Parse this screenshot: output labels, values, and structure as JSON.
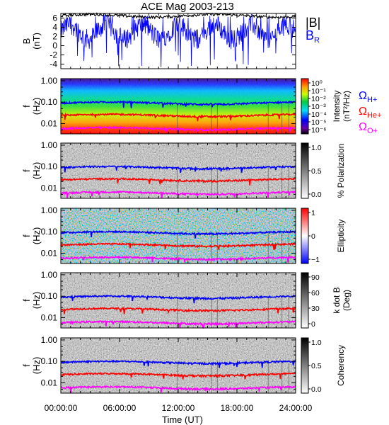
{
  "chart_data": {
    "title": "ACE Mag 2003-213",
    "xlabel": "Time (UT)",
    "x_tick_labels": [
      "00:00:00",
      "06:00:00",
      "12:00:00",
      "18:00:00",
      "24:00:00"
    ],
    "x_range_hours": [
      0,
      24
    ],
    "panels": [
      {
        "type": "line",
        "ylabel_top": "B",
        "ylabel_bottom": "(nT)",
        "y_ticks": [
          6,
          4,
          2,
          0,
          -2,
          -4
        ],
        "ylim": [
          -5,
          7
        ],
        "series": [
          {
            "name": "|B|",
            "color": "#000000",
            "typical": 6.5
          },
          {
            "name": "B",
            "subscript": "R",
            "color": "#0000ff",
            "typical": 3.0
          }
        ]
      },
      {
        "type": "heatmap",
        "ylabel_top": "f",
        "ylabel_bottom": "(Hz)",
        "y_scale": "log",
        "y_tick_labels": [
          "1.00",
          "0.10",
          "0.01"
        ],
        "ylim": [
          0.003,
          1.3
        ],
        "colormap": "rainbow",
        "colorbar_label": "Intensity",
        "colorbar_units": "(nT²/Hz)",
        "colorbar_ticks": [
          "10⁰",
          "10⁻¹",
          "10⁻²",
          "10⁻³",
          "10⁻⁴",
          "10⁻⁵",
          "10⁻⁶"
        ],
        "legend": [
          {
            "symbol": "Ω",
            "sub": "H+",
            "color": "#0000ff"
          },
          {
            "symbol": "Ω",
            "sub": "He+",
            "color": "#ff0000"
          },
          {
            "symbol": "Ω",
            "sub": "O+",
            "color": "#ff00ff"
          }
        ]
      },
      {
        "type": "heatmap",
        "ylabel_top": "f",
        "ylabel_bottom": "(Hz)",
        "y_tick_labels": [
          "1.00",
          "0.10",
          "0.01"
        ],
        "colormap": "gray",
        "colorbar_label": "% Polarization",
        "colorbar_ticks": [
          "1.0",
          "0.5",
          "0.0"
        ]
      },
      {
        "type": "heatmap",
        "ylabel_top": "f",
        "ylabel_bottom": "(Hz)",
        "y_tick_labels": [
          "1.00",
          "0.10",
          "0.01"
        ],
        "colormap": "bluewhitered",
        "colorbar_label": "Ellipticity",
        "colorbar_ticks": [
          "1",
          "0",
          "−1"
        ]
      },
      {
        "type": "heatmap",
        "ylabel_top": "f",
        "ylabel_bottom": "(Hz)",
        "y_tick_labels": [
          "1.00",
          "0.10",
          "0.01"
        ],
        "colormap": "gray",
        "colorbar_label": "k dot B",
        "colorbar_units": "(Deg)",
        "colorbar_ticks": [
          "90",
          "60",
          "30",
          "0"
        ]
      },
      {
        "type": "heatmap",
        "ylabel_top": "f",
        "ylabel_bottom": "(Hz)",
        "y_tick_labels": [
          "1.00",
          "0.10",
          "0.01"
        ],
        "colormap": "gray",
        "colorbar_label": "Coherency",
        "colorbar_ticks": [
          "1.0",
          "0.5",
          "0.0"
        ]
      }
    ],
    "gyrofrequency_lines": [
      {
        "name": "H+",
        "color": "#0000ff",
        "typical_hz": 0.09
      },
      {
        "name": "He+",
        "color": "#ff0000",
        "typical_hz": 0.024
      },
      {
        "name": "O+",
        "color": "#ff00ff",
        "typical_hz": 0.0058
      }
    ]
  }
}
